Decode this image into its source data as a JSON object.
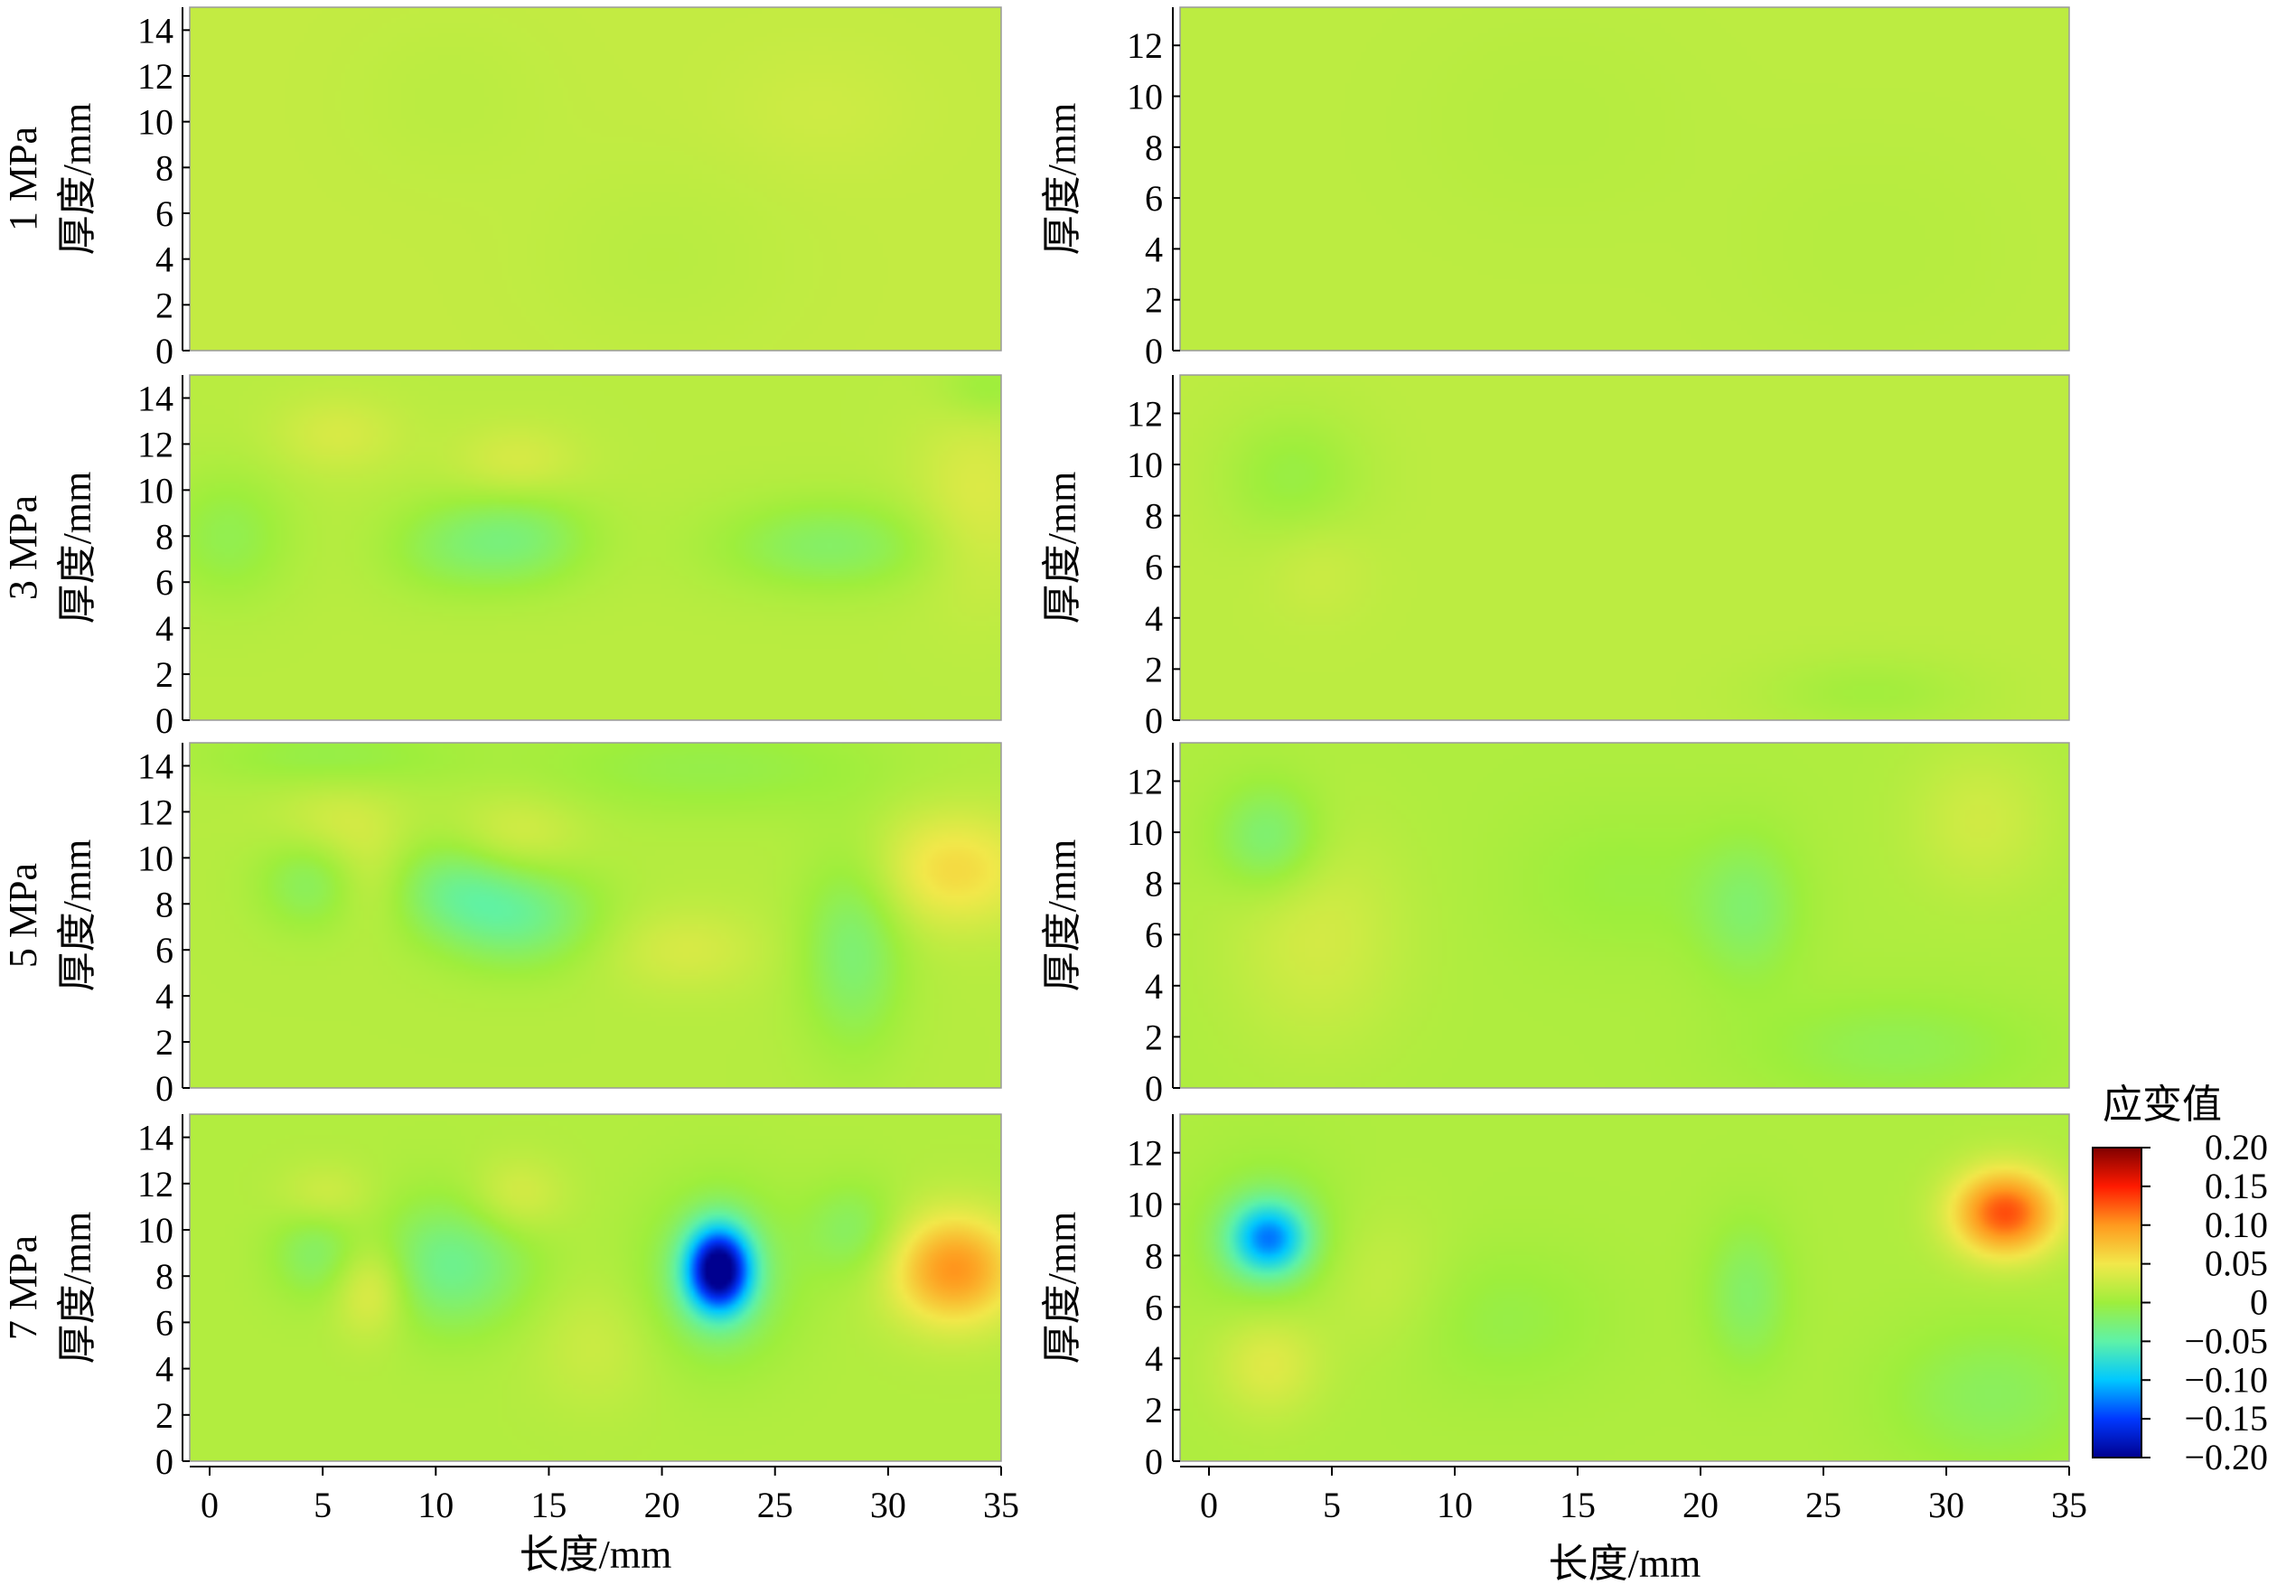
{
  "chart_data": {
    "type": "heatmap",
    "colorbar": {
      "title": "应变值",
      "ticks": [
        "0.20",
        "0.15",
        "0.10",
        "0.05",
        "0",
        "−0.05",
        "−0.10",
        "−0.15",
        "−0.20"
      ],
      "range": [
        -0.2,
        0.2
      ],
      "colorscale": "jet",
      "colors": [
        "#00008f",
        "#0038ff",
        "#00c8ff",
        "#5ef2a8",
        "#9eee3c",
        "#f2e84a",
        "#ff9a1e",
        "#ff1a00",
        "#800000"
      ]
    },
    "x_ticks": [
      "0",
      "5",
      "10",
      "15",
      "20",
      "25",
      "30",
      "35"
    ],
    "xlim": [
      0,
      35
    ],
    "left_y_ticks": [
      "0",
      "2",
      "4",
      "6",
      "8",
      "10",
      "12",
      "14"
    ],
    "right_y_ticks": [
      "0",
      "2",
      "4",
      "6",
      "8",
      "10",
      "12"
    ],
    "ylim_left": [
      0,
      15
    ],
    "ylim_right": [
      0,
      13.5
    ],
    "panels": [
      {
        "row": 0,
        "column": "left",
        "pressure_label": "1 MPa",
        "ylabel": "厚度/mm",
        "baseline": 0.022,
        "features": [
          {
            "x": 10.5,
            "y": 11.0,
            "sx": 3.0,
            "sy": 2.5,
            "value": -0.005
          },
          {
            "x": 20.0,
            "y": 4.0,
            "sx": 4.0,
            "sy": 3.0,
            "value": -0.006
          },
          {
            "x": 27.0,
            "y": 10.5,
            "sx": 3.0,
            "sy": 2.0,
            "value": 0.006
          }
        ]
      },
      {
        "row": 0,
        "column": "right",
        "ylabel": "厚度/mm",
        "baseline": 0.018,
        "features": [
          {
            "x": 14.0,
            "y": 9.0,
            "sx": 4.0,
            "sy": 3.0,
            "value": -0.004
          },
          {
            "x": 27.0,
            "y": 4.0,
            "sx": 4.0,
            "sy": 3.0,
            "value": -0.004
          }
        ]
      },
      {
        "row": 1,
        "column": "left",
        "pressure_label": "3 MPa",
        "ylabel": "厚度/mm",
        "baseline": 0.016,
        "features": [
          {
            "x": 13.5,
            "y": 7.9,
            "sx": 2.3,
            "sy": 1.5,
            "value": -0.04
          },
          {
            "x": 27.5,
            "y": 7.6,
            "sx": 3.5,
            "sy": 1.4,
            "value": -0.035
          },
          {
            "x": 0.6,
            "y": 8.0,
            "sx": 2.0,
            "sy": 2.0,
            "value": -0.025
          },
          {
            "x": 10.0,
            "y": 7.5,
            "sx": 2.0,
            "sy": 1.5,
            "value": -0.02
          },
          {
            "x": 5.5,
            "y": 12.5,
            "sx": 2.0,
            "sy": 1.2,
            "value": 0.018
          },
          {
            "x": 13.5,
            "y": 11.2,
            "sx": 2.0,
            "sy": 1.2,
            "value": 0.02
          },
          {
            "x": 34.0,
            "y": 9.5,
            "sx": 2.0,
            "sy": 3.0,
            "value": 0.022
          },
          {
            "x": 34.5,
            "y": 14.5,
            "sx": 1.5,
            "sy": 1.0,
            "value": -0.02
          }
        ]
      },
      {
        "row": 1,
        "column": "right",
        "ylabel": "厚度/mm",
        "baseline": 0.018,
        "features": [
          {
            "x": 3.5,
            "y": 9.5,
            "sx": 2.0,
            "sy": 1.8,
            "value": -0.022
          },
          {
            "x": 4.5,
            "y": 6.0,
            "sx": 1.5,
            "sy": 1.5,
            "value": 0.01
          },
          {
            "x": 27.0,
            "y": 1.0,
            "sx": 3.0,
            "sy": 1.0,
            "value": -0.015
          }
        ]
      },
      {
        "row": 2,
        "column": "left",
        "pressure_label": "5 MPa",
        "ylabel": "厚度/mm",
        "baseline": 0.014,
        "features": [
          {
            "x": 13.5,
            "y": 7.5,
            "sx": 2.5,
            "sy": 1.6,
            "value": -0.05
          },
          {
            "x": 10.5,
            "y": 8.8,
            "sx": 2.0,
            "sy": 1.5,
            "value": -0.035
          },
          {
            "x": 4.2,
            "y": 9.0,
            "sx": 1.6,
            "sy": 1.5,
            "value": -0.03
          },
          {
            "x": 28.5,
            "y": 6.0,
            "sx": 1.6,
            "sy": 3.0,
            "value": -0.04
          },
          {
            "x": 33.0,
            "y": 9.5,
            "sx": 2.5,
            "sy": 1.8,
            "value": 0.045
          },
          {
            "x": 5.5,
            "y": 11.5,
            "sx": 2.0,
            "sy": 1.3,
            "value": 0.02
          },
          {
            "x": 13.5,
            "y": 11.0,
            "sx": 2.0,
            "sy": 1.3,
            "value": 0.022
          },
          {
            "x": 21.0,
            "y": 6.0,
            "sx": 2.5,
            "sy": 1.3,
            "value": 0.02
          },
          {
            "x": 7.0,
            "y": 9.0,
            "sx": 1.2,
            "sy": 1.5,
            "value": 0.015
          },
          {
            "x": 22.0,
            "y": 14.0,
            "sx": 6.0,
            "sy": 1.5,
            "value": -0.02
          },
          {
            "x": 5.0,
            "y": 14.5,
            "sx": 4.0,
            "sy": 1.0,
            "value": -0.02
          }
        ]
      },
      {
        "row": 2,
        "column": "right",
        "ylabel": "厚度/mm",
        "baseline": 0.01,
        "features": [
          {
            "x": 2.5,
            "y": 9.8,
            "sx": 1.5,
            "sy": 1.5,
            "value": -0.04
          },
          {
            "x": 22.0,
            "y": 7.0,
            "sx": 1.5,
            "sy": 2.0,
            "value": -0.03
          },
          {
            "x": 4.5,
            "y": 6.0,
            "sx": 2.5,
            "sy": 3.0,
            "value": 0.022
          },
          {
            "x": 31.5,
            "y": 10.5,
            "sx": 2.0,
            "sy": 2.0,
            "value": 0.02
          },
          {
            "x": 17.0,
            "y": 8.0,
            "sx": 3.0,
            "sy": 2.0,
            "value": -0.012
          },
          {
            "x": 28.0,
            "y": 1.5,
            "sx": 4.0,
            "sy": 1.5,
            "value": -0.02
          }
        ]
      },
      {
        "row": 3,
        "column": "left",
        "pressure_label": "7 MPa",
        "ylabel": "厚度/mm",
        "baseline": 0.012,
        "features": [
          {
            "x": 22.5,
            "y": 8.3,
            "sx": 1.0,
            "sy": 1.3,
            "value": -0.2
          },
          {
            "x": 22.5,
            "y": 8.0,
            "sx": 2.2,
            "sy": 2.5,
            "value": -0.045
          },
          {
            "x": 33.0,
            "y": 8.3,
            "sx": 2.0,
            "sy": 1.7,
            "value": 0.09
          },
          {
            "x": 10.5,
            "y": 8.5,
            "sx": 2.5,
            "sy": 2.0,
            "value": -0.05
          },
          {
            "x": 4.5,
            "y": 9.0,
            "sx": 1.4,
            "sy": 1.4,
            "value": -0.03
          },
          {
            "x": 7.0,
            "y": 7.5,
            "sx": 1.2,
            "sy": 1.5,
            "value": 0.04
          },
          {
            "x": 13.5,
            "y": 11.5,
            "sx": 1.5,
            "sy": 1.2,
            "value": 0.025
          },
          {
            "x": 5.0,
            "y": 11.5,
            "sx": 1.5,
            "sy": 1.0,
            "value": 0.02
          },
          {
            "x": 28.5,
            "y": 10.0,
            "sx": 1.5,
            "sy": 1.5,
            "value": -0.03
          },
          {
            "x": 17.0,
            "y": 5.0,
            "sx": 2.0,
            "sy": 2.0,
            "value": 0.015
          }
        ]
      },
      {
        "row": 3,
        "column": "right",
        "ylabel": "厚度/mm",
        "baseline": 0.01,
        "features": [
          {
            "x": 2.5,
            "y": 8.7,
            "sx": 1.1,
            "sy": 1.0,
            "value": -0.11
          },
          {
            "x": 2.5,
            "y": 8.7,
            "sx": 2.0,
            "sy": 2.0,
            "value": -0.03
          },
          {
            "x": 32.5,
            "y": 9.7,
            "sx": 1.5,
            "sy": 1.2,
            "value": 0.12
          },
          {
            "x": 2.5,
            "y": 3.8,
            "sx": 1.5,
            "sy": 1.5,
            "value": 0.03
          },
          {
            "x": 22.0,
            "y": 6.5,
            "sx": 1.2,
            "sy": 2.0,
            "value": -0.03
          },
          {
            "x": 12.0,
            "y": 5.5,
            "sx": 3.0,
            "sy": 2.0,
            "value": -0.015
          },
          {
            "x": 32.0,
            "y": 2.5,
            "sx": 3.0,
            "sy": 2.0,
            "value": -0.025
          },
          {
            "x": 7.0,
            "y": 7.0,
            "sx": 2.0,
            "sy": 2.0,
            "value": 0.015
          }
        ]
      }
    ],
    "xlabel_left": "长度/mm",
    "xlabel_right": "长度/mm"
  }
}
